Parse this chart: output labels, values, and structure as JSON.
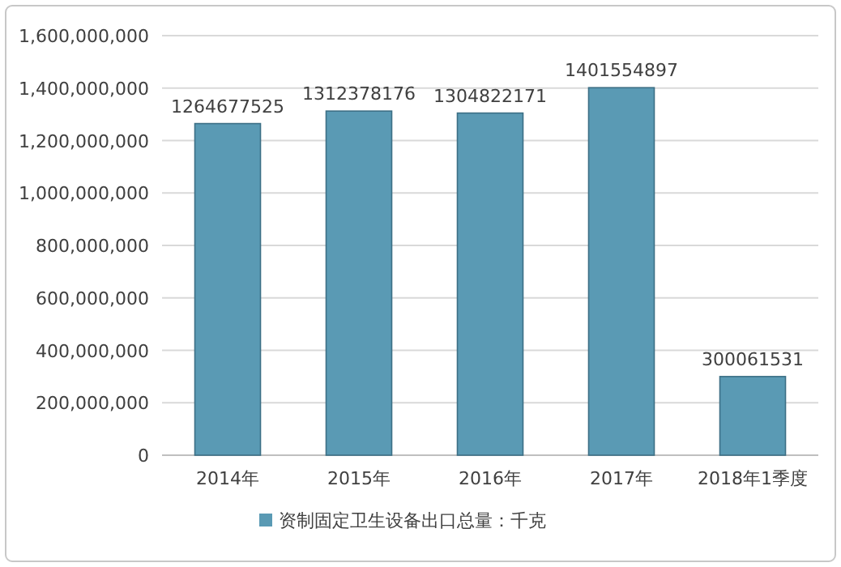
{
  "chart_data": {
    "type": "bar",
    "categories": [
      "2014年",
      "2015年",
      "2016年",
      "2017年",
      "2018年1季度"
    ],
    "series": [
      {
        "name": "资制固定卫生设备出口总量：千克",
        "color": "#5a9ab4",
        "values": [
          1264677525,
          1312378176,
          1304822171,
          1401554897,
          300061531
        ]
      }
    ],
    "ylim": [
      0,
      1600000000
    ],
    "yticks": [
      0,
      {
        "value": 200000000,
        "label": "200,000,000"
      },
      {
        "value": 400000000,
        "label": "400,000,000"
      },
      {
        "value": 600000000,
        "label": "600,000,000"
      },
      {
        "value": 800000000,
        "label": "800,000,000"
      },
      {
        "value": 1000000000,
        "label": "1,000,000,000"
      },
      {
        "value": 1200000000,
        "label": "1,200,000,000"
      },
      {
        "value": 1400000000,
        "label": "1,400,000,000"
      },
      {
        "value": 1600000000,
        "label": "1,600,000,000"
      }
    ],
    "grid": "y",
    "legend": "bottom",
    "data_labels": true
  }
}
